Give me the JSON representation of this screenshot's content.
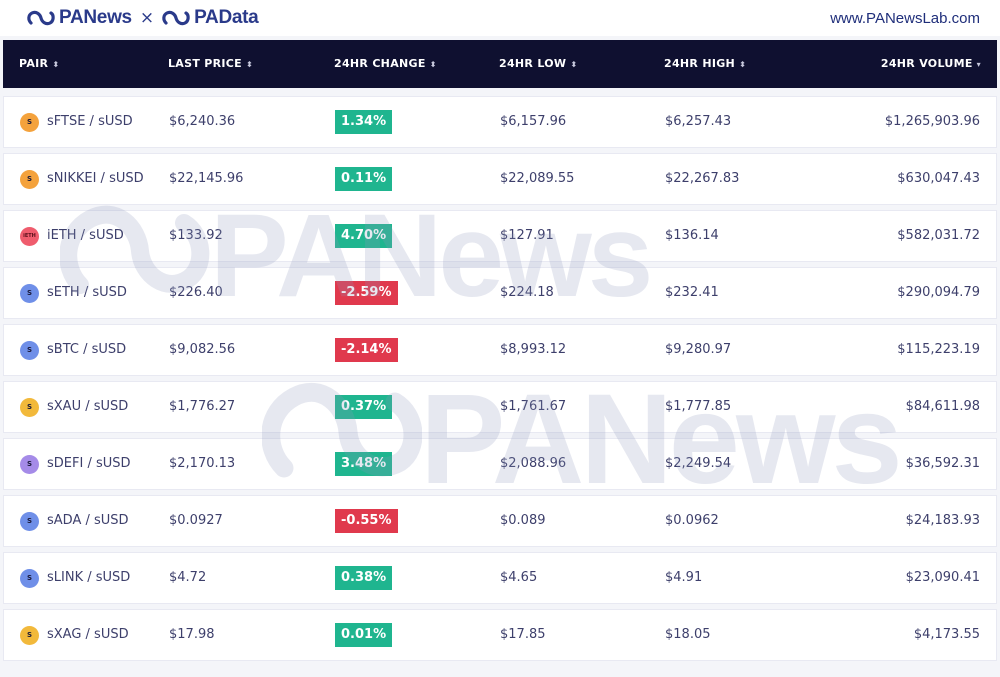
{
  "brand": {
    "left_name": "PANews",
    "separator": "×",
    "right_name": "PAData",
    "site": "www.PANewsLab.com"
  },
  "watermark_text": "PANews",
  "columns": {
    "pair": "PAIR",
    "last_price": "LAST PRICE",
    "change": "24HR CHANGE",
    "low": "24HR LOW",
    "high": "24HR HIGH",
    "volume": "24HR VOLUME",
    "sort_icon": "⬍",
    "sort_desc_icon": "▾"
  },
  "colors": {
    "header_bg": "#0f1030",
    "positive": "#1fb58f",
    "negative": "#e0394d"
  },
  "rows": [
    {
      "pair": "sFTSE / sUSD",
      "icon": "synth-coin-icon",
      "coin_label": "S",
      "coin_color": "#f4a23c",
      "last_price": "$6,240.36",
      "change": "1.34%",
      "direction": "up",
      "low": "$6,157.96",
      "high": "$6,257.43",
      "volume": "$1,265,903.96"
    },
    {
      "pair": "sNIKKEI / sUSD",
      "icon": "synth-coin-icon",
      "coin_label": "S",
      "coin_color": "#f4a23c",
      "last_price": "$22,145.96",
      "change": "0.11%",
      "direction": "up",
      "low": "$22,089.55",
      "high": "$22,267.83",
      "volume": "$630,047.43"
    },
    {
      "pair": "iETH / sUSD",
      "icon": "inverse-eth-icon",
      "coin_label": "iETH",
      "coin_color": "#ef5c6d",
      "last_price": "$133.92",
      "change": "4.70%",
      "direction": "up",
      "low": "$127.91",
      "high": "$136.14",
      "volume": "$582,031.72"
    },
    {
      "pair": "sETH / sUSD",
      "icon": "synth-coin-icon",
      "coin_label": "S",
      "coin_color": "#6f8fe8",
      "last_price": "$226.40",
      "change": "-2.59%",
      "direction": "down",
      "low": "$224.18",
      "high": "$232.41",
      "volume": "$290,094.79"
    },
    {
      "pair": "sBTC / sUSD",
      "icon": "synth-coin-icon",
      "coin_label": "S",
      "coin_color": "#6f8fe8",
      "last_price": "$9,082.56",
      "change": "-2.14%",
      "direction": "down",
      "low": "$8,993.12",
      "high": "$9,280.97",
      "volume": "$115,223.19"
    },
    {
      "pair": "sXAU / sUSD",
      "icon": "synth-coin-icon",
      "coin_label": "S",
      "coin_color": "#f2b93b",
      "last_price": "$1,776.27",
      "change": "0.37%",
      "direction": "up",
      "low": "$1,761.67",
      "high": "$1,777.85",
      "volume": "$84,611.98"
    },
    {
      "pair": "sDEFI / sUSD",
      "icon": "synth-coin-icon",
      "coin_label": "S",
      "coin_color": "#a58be8",
      "last_price": "$2,170.13",
      "change": "3.48%",
      "direction": "up",
      "low": "$2,088.96",
      "high": "$2,249.54",
      "volume": "$36,592.31"
    },
    {
      "pair": "sADA / sUSD",
      "icon": "synth-coin-icon",
      "coin_label": "S",
      "coin_color": "#6f8fe8",
      "last_price": "$0.0927",
      "change": "-0.55%",
      "direction": "down",
      "low": "$0.089",
      "high": "$0.0962",
      "volume": "$24,183.93"
    },
    {
      "pair": "sLINK / sUSD",
      "icon": "synth-coin-icon",
      "coin_label": "S",
      "coin_color": "#6f8fe8",
      "last_price": "$4.72",
      "change": "0.38%",
      "direction": "up",
      "low": "$4.65",
      "high": "$4.91",
      "volume": "$23,090.41"
    },
    {
      "pair": "sXAG / sUSD",
      "icon": "synth-coin-icon",
      "coin_label": "S",
      "coin_color": "#f2b93b",
      "last_price": "$17.98",
      "change": "0.01%",
      "direction": "up",
      "low": "$17.85",
      "high": "$18.05",
      "volume": "$4,173.55"
    }
  ]
}
